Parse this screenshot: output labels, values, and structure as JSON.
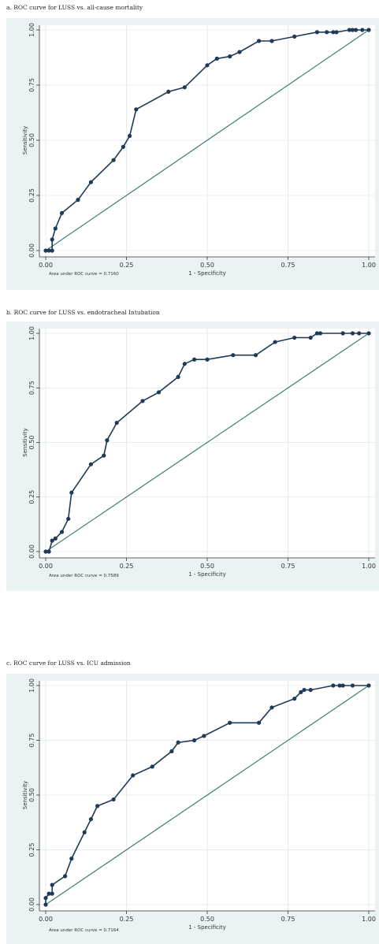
{
  "colors": {
    "panel_bg": "#eaf2f3",
    "plot_bg": "#ffffff",
    "curve": "#1f3a57",
    "reference": "#3e7f76",
    "grid": "#e1e9ea"
  },
  "chart_data": [
    {
      "type": "line",
      "caption": "a. ROC curve for LUSS vs. all-cause mortality",
      "xlabel": "1 - Specificity",
      "ylabel": "Sensitivity",
      "auc_label": "Area under ROC curve = 0.7160",
      "xlim": [
        0,
        1
      ],
      "ylim": [
        0,
        1
      ],
      "xticks": [
        "0.00",
        "0.25",
        "0.50",
        "0.75",
        "1.00"
      ],
      "yticks": [
        "0.00",
        "0.25",
        "0.50",
        "0.75",
        "1.00"
      ],
      "grid": true,
      "series": [
        {
          "role": "roc",
          "x": [
            0,
            0.01,
            0.02,
            0.02,
            0.03,
            0.05,
            0.1,
            0.14,
            0.21,
            0.24,
            0.26,
            0.28,
            0.38,
            0.43,
            0.5,
            0.53,
            0.57,
            0.6,
            0.66,
            0.7,
            0.77,
            0.84,
            0.87,
            0.89,
            0.9,
            0.94,
            0.95,
            0.96,
            0.98,
            1.0
          ],
          "y": [
            0,
            0,
            0,
            0.05,
            0.1,
            0.17,
            0.23,
            0.31,
            0.41,
            0.47,
            0.52,
            0.64,
            0.72,
            0.74,
            0.84,
            0.87,
            0.88,
            0.9,
            0.95,
            0.95,
            0.97,
            0.99,
            0.99,
            0.99,
            0.99,
            1.0,
            1.0,
            1.0,
            1.0,
            1.0
          ]
        },
        {
          "role": "reference",
          "x": [
            0,
            1
          ],
          "y": [
            0,
            1
          ]
        }
      ]
    },
    {
      "type": "line",
      "caption": "b. ROC curve for LUSS vs. endotracheal Intubation",
      "xlabel": "1 - Specificity",
      "ylabel": "Sensitivity",
      "auc_label": "Area under ROC curve = 0.7589",
      "xlim": [
        0,
        1
      ],
      "ylim": [
        0,
        1
      ],
      "xticks": [
        "0.00",
        "0.25",
        "0.50",
        "0.75",
        "1.00"
      ],
      "yticks": [
        "0.00",
        "0.25",
        "0.50",
        "0.75",
        "1.00"
      ],
      "grid": true,
      "series": [
        {
          "role": "roc",
          "x": [
            0,
            0.01,
            0.02,
            0.03,
            0.05,
            0.07,
            0.08,
            0.14,
            0.18,
            0.19,
            0.22,
            0.3,
            0.35,
            0.41,
            0.43,
            0.46,
            0.5,
            0.58,
            0.65,
            0.71,
            0.77,
            0.82,
            0.84,
            0.85,
            0.92,
            0.95,
            0.97,
            1.0
          ],
          "y": [
            0,
            0,
            0.05,
            0.06,
            0.09,
            0.15,
            0.27,
            0.4,
            0.44,
            0.51,
            0.59,
            0.69,
            0.73,
            0.8,
            0.86,
            0.88,
            0.88,
            0.9,
            0.9,
            0.96,
            0.98,
            0.98,
            1.0,
            1.0,
            1.0,
            1.0,
            1.0,
            1.0
          ]
        },
        {
          "role": "reference",
          "x": [
            0,
            1
          ],
          "y": [
            0,
            1
          ]
        }
      ]
    },
    {
      "type": "line",
      "caption": "c. ROC curve for LUSS vs. ICU admission",
      "xlabel": "1 - Specificity",
      "ylabel": "Sensitivity",
      "auc_label": "Area under ROC curve = 0.7164",
      "xlim": [
        0,
        1
      ],
      "ylim": [
        0,
        1
      ],
      "xticks": [
        "0.00",
        "0.25",
        "0.50",
        "0.75",
        "1.00"
      ],
      "yticks": [
        "0.00",
        "0.25",
        "0.50",
        "0.75",
        "1.00"
      ],
      "grid": true,
      "series": [
        {
          "role": "roc",
          "x": [
            0,
            0,
            0.01,
            0.02,
            0.02,
            0.06,
            0.08,
            0.12,
            0.14,
            0.16,
            0.21,
            0.27,
            0.33,
            0.39,
            0.41,
            0.46,
            0.49,
            0.57,
            0.66,
            0.7,
            0.77,
            0.79,
            0.8,
            0.82,
            0.89,
            0.91,
            0.92,
            0.95,
            1.0
          ],
          "y": [
            0,
            0.03,
            0.05,
            0.05,
            0.09,
            0.13,
            0.21,
            0.33,
            0.39,
            0.45,
            0.48,
            0.59,
            0.63,
            0.7,
            0.74,
            0.75,
            0.77,
            0.83,
            0.83,
            0.9,
            0.94,
            0.97,
            0.98,
            0.98,
            1.0,
            1.0,
            1.0,
            1.0,
            1.0
          ]
        },
        {
          "role": "reference",
          "x": [
            0,
            1
          ],
          "y": [
            0,
            1
          ]
        }
      ]
    }
  ]
}
